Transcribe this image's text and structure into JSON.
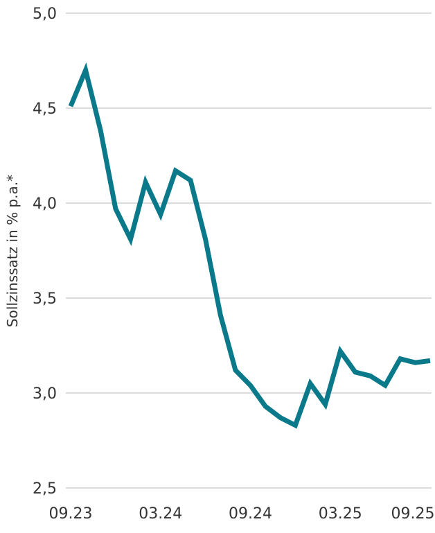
{
  "chart_data": {
    "type": "line",
    "title": "",
    "xlabel": "",
    "ylabel": "Sollzinssatz in % p.a.*",
    "ylim": [
      2.5,
      5.0
    ],
    "yticks": [
      "2,5",
      "3,0",
      "3,5",
      "4,0",
      "4,5",
      "5,0"
    ],
    "ytick_values": [
      2.5,
      3.0,
      3.5,
      4.0,
      4.5,
      5.0
    ],
    "grid": true,
    "legend": null,
    "x_tick_labels": [
      "09.23",
      "03.24",
      "09.24",
      "03.25",
      "09.25"
    ],
    "x_tick_indices": [
      0,
      6,
      12,
      18,
      24
    ],
    "x": [
      "09.23",
      "10.23",
      "11.23",
      "12.23",
      "01.24",
      "02.24",
      "03.24",
      "04.24",
      "05.24",
      "06.24",
      "07.24",
      "08.24",
      "09.24",
      "10.24",
      "11.24",
      "12.24",
      "01.25",
      "02.25",
      "03.25",
      "04.25",
      "05.25",
      "06.25",
      "07.25",
      "08.25",
      "09.25"
    ],
    "series": [
      {
        "name": "Sollzinssatz",
        "color": "#0a7a8a",
        "values": [
          4.51,
          4.7,
          4.38,
          3.97,
          3.81,
          4.11,
          3.94,
          4.17,
          4.12,
          3.81,
          3.41,
          3.12,
          3.04,
          2.93,
          2.87,
          2.83,
          3.05,
          2.94,
          3.22,
          3.11,
          3.09,
          3.04,
          3.18,
          3.16,
          3.17
        ]
      }
    ]
  },
  "colors": {
    "line": "#0a7a8a",
    "grid": "#d0d0d0",
    "text": "#333333"
  }
}
